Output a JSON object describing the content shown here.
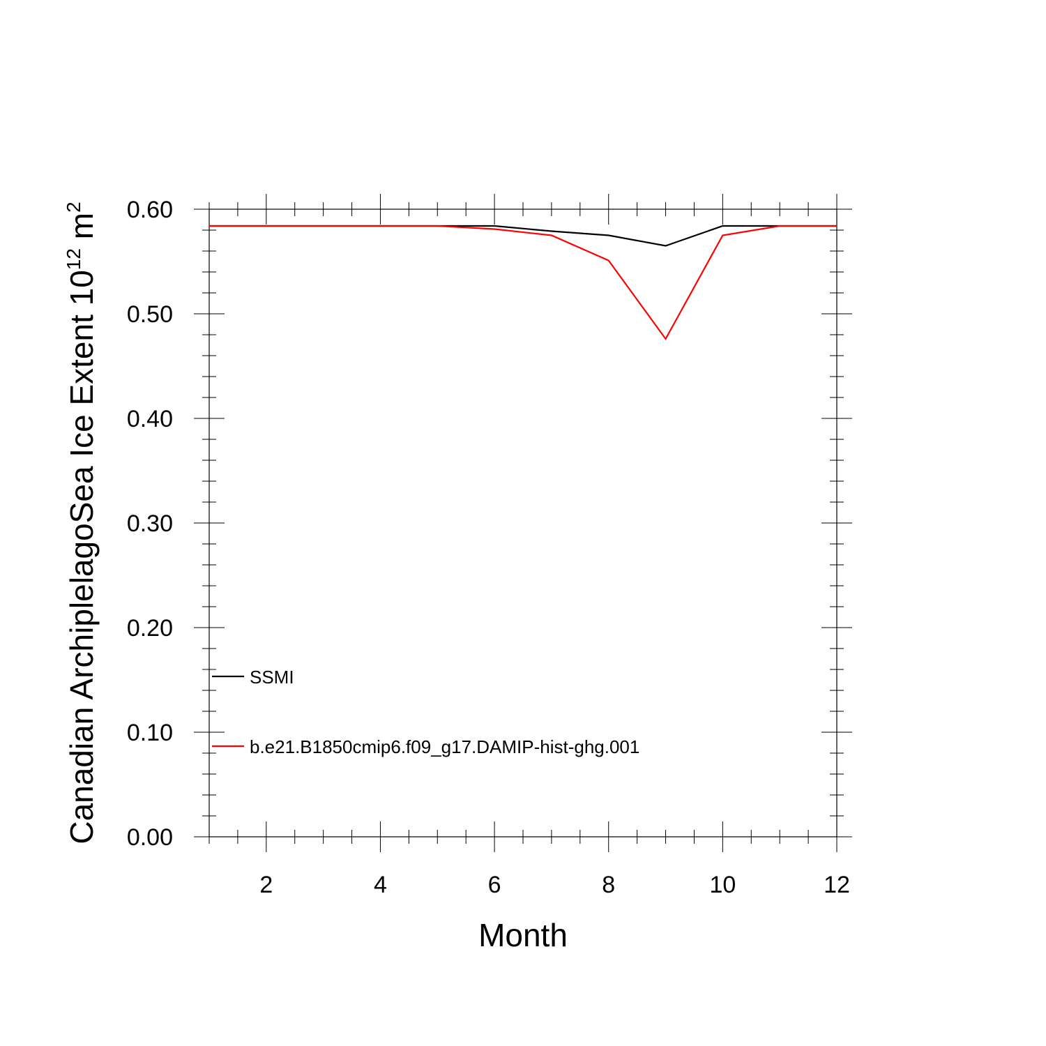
{
  "chart_data": {
    "type": "line",
    "title": "",
    "xlabel": "Month",
    "ylabel_main": "Canadian ArchiplelagoSea Ice Extent 10",
    "ylabel_sup1": "12",
    "ylabel_mid": " m",
    "ylabel_sup2": "2",
    "xlim": [
      1,
      12
    ],
    "ylim": [
      0.0,
      0.6
    ],
    "x_ticks": [
      2,
      4,
      6,
      8,
      10,
      12
    ],
    "y_ticks": [
      "0.00",
      "0.10",
      "0.20",
      "0.30",
      "0.40",
      "0.50",
      "0.60"
    ],
    "grid": false,
    "legend_position": "lower-left",
    "x": [
      1,
      2,
      3,
      4,
      5,
      6,
      7,
      8,
      9,
      10,
      11,
      12
    ],
    "series": [
      {
        "name": "SSMI",
        "color": "#000000",
        "values": [
          0.584,
          0.584,
          0.584,
          0.584,
          0.584,
          0.584,
          0.579,
          0.575,
          0.565,
          0.584,
          0.584,
          0.584
        ]
      },
      {
        "name": "b.e21.B1850cmip6.f09_g17.DAMIP-hist-ghg.001",
        "color": "#ff0000",
        "values": [
          0.584,
          0.584,
          0.584,
          0.584,
          0.584,
          0.581,
          0.575,
          0.551,
          0.476,
          0.575,
          0.584,
          0.584
        ]
      }
    ]
  }
}
